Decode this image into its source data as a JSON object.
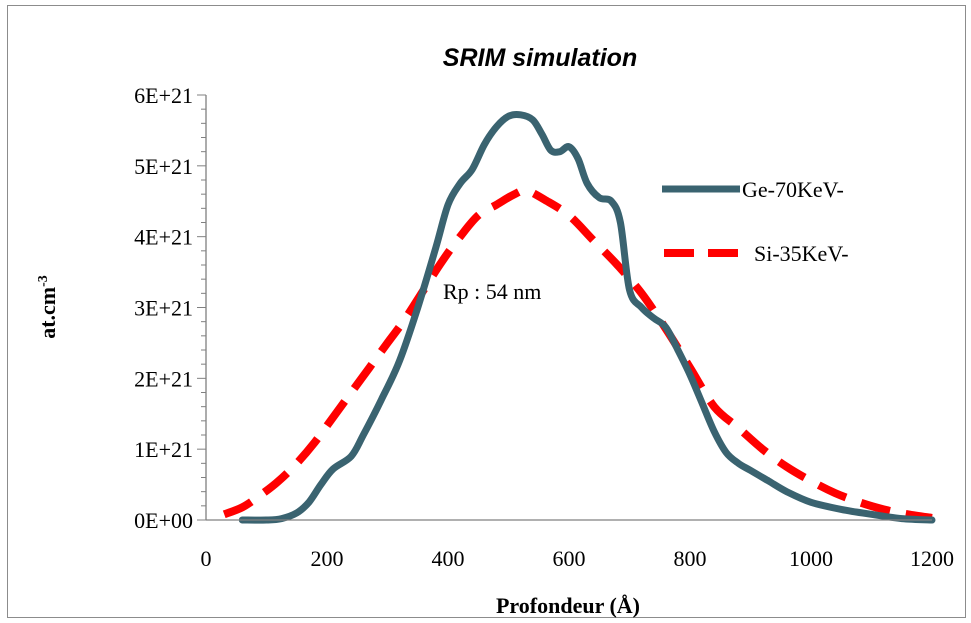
{
  "chart_data": {
    "type": "line",
    "title": "SRIM simulation",
    "xlabel": "Profondeur (Å)",
    "ylabel_main": "at.cm",
    "ylabel_sup": "-3",
    "xlim": [
      0,
      1200
    ],
    "ylim": [
      0,
      6e+21
    ],
    "x_ticks": [
      0,
      200,
      400,
      600,
      800,
      1000,
      1200
    ],
    "x_tick_labels": [
      "0",
      "200",
      "400",
      "600",
      "800",
      "1000",
      "1200"
    ],
    "y_ticks": [
      0,
      1e+21,
      2e+21,
      3e+21,
      4e+21,
      5e+21,
      6e+21
    ],
    "y_tick_labels": [
      "0E+00",
      "1E+21",
      "2E+21",
      "3E+21",
      "4E+21",
      "5E+21",
      "6E+21"
    ],
    "y_minor_per_major": 5,
    "grid": false,
    "legend_position": "right",
    "annotation": "Rp : 54 nm",
    "series": [
      {
        "name": "Ge-70KeV-",
        "color": "#3a6370",
        "style": "solid",
        "x": [
          60,
          100,
          125,
          150,
          170,
          190,
          210,
          240,
          260,
          290,
          320,
          350,
          380,
          400,
          420,
          440,
          460,
          480,
          500,
          520,
          540,
          555,
          570,
          585,
          600,
          615,
          630,
          650,
          670,
          685,
          700,
          720,
          740,
          760,
          780,
          800,
          820,
          840,
          860,
          880,
          900,
          930,
          960,
          1000,
          1050,
          1100,
          1150,
          1200
        ],
        "y": [
          0,
          0,
          2e+19,
          1e+20,
          2.5e+20,
          5e+20,
          7.2e+20,
          9e+20,
          1.2e+21,
          1.7e+21,
          2.25e+21,
          3e+21,
          3.85e+21,
          4.45e+21,
          4.75e+21,
          4.95e+21,
          5.3e+21,
          5.55e+21,
          5.7e+21,
          5.72e+21,
          5.65e+21,
          5.45e+21,
          5.22e+21,
          5.2e+21,
          5.27e+21,
          5.1e+21,
          4.75e+21,
          4.55e+21,
          4.5e+21,
          4.2e+21,
          3.25e+21,
          3e+21,
          2.85e+21,
          2.72e+21,
          2.4e+21,
          2.05e+21,
          1.65e+21,
          1.25e+21,
          9.5e+20,
          8e+20,
          7e+20,
          5.5e+20,
          4e+20,
          2.5e+20,
          1.5e+20,
          8e+19,
          2e+19,
          0
        ]
      },
      {
        "name": "Si-35KeV-",
        "color": "#ff0000",
        "style": "dashed",
        "x": [
          30,
          60,
          90,
          120,
          150,
          180,
          210,
          240,
          270,
          300,
          330,
          360,
          390,
          420,
          450,
          480,
          510,
          530,
          560,
          600,
          640,
          680,
          720,
          760,
          800,
          840,
          880,
          920,
          960,
          1000,
          1040,
          1080,
          1120,
          1160,
          1200
        ],
        "y": [
          8e+19,
          1.8e+20,
          3.5e+20,
          5.5e+20,
          8e+20,
          1.1e+21,
          1.45e+21,
          1.8e+21,
          2.15e+21,
          2.5e+21,
          2.85e+21,
          3.25e+21,
          3.65e+21,
          4e+21,
          4.3e+21,
          4.45e+21,
          4.6e+21,
          4.65e+21,
          4.52e+21,
          4.3e+21,
          3.95e+21,
          3.6e+21,
          3.2e+21,
          2.7e+21,
          2.15e+21,
          1.6e+21,
          1.3e+21,
          1e+21,
          7.5e+20,
          5.5e+20,
          3.8e+20,
          2.5e+20,
          1.5e+20,
          8e+19,
          3e+19
        ]
      }
    ]
  }
}
